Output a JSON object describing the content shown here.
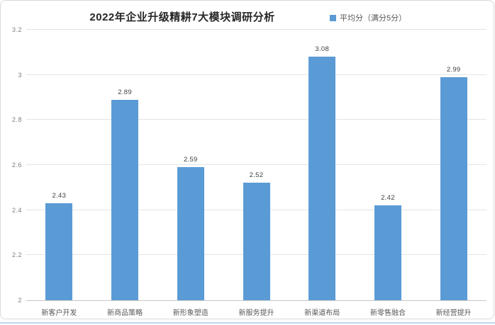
{
  "chart": {
    "title": "2022年企业升级精耕7大模块调研分析",
    "legend_label": "平均分（满分5分）"
  },
  "colors": {
    "bar": "#5b9bd5",
    "gridline": "#e4e4e4",
    "axis_line": "#c6c6c6",
    "title_text": "#262626",
    "tick_text": "#808080",
    "value_text": "#404040",
    "bottom_edge": "#bdd7ee"
  },
  "chart_data": {
    "type": "bar",
    "title": "2022年企业升级精耕7大模块调研分析",
    "series_name": "平均分（满分5分）",
    "categories": [
      "新客户开发",
      "新商品策略",
      "新形象塑造",
      "新服务提升",
      "新渠道布局",
      "新零售融合",
      "新经营提升"
    ],
    "values": [
      2.43,
      2.89,
      2.59,
      2.52,
      3.08,
      2.42,
      2.99
    ],
    "value_labels": [
      "2.43",
      "2.89",
      "2.59",
      "2.52",
      "3.08",
      "2.42",
      "2.99"
    ],
    "xlabel": "",
    "ylabel": "",
    "ylim": [
      2,
      3.2
    ],
    "ytick_step": 0.2,
    "yticks": [
      "3.2",
      "3",
      "2.8",
      "2.6",
      "2.4",
      "2.2",
      "2"
    ],
    "grid": true,
    "legend_position": "top-right",
    "bar_color": "#5b9bd5"
  }
}
